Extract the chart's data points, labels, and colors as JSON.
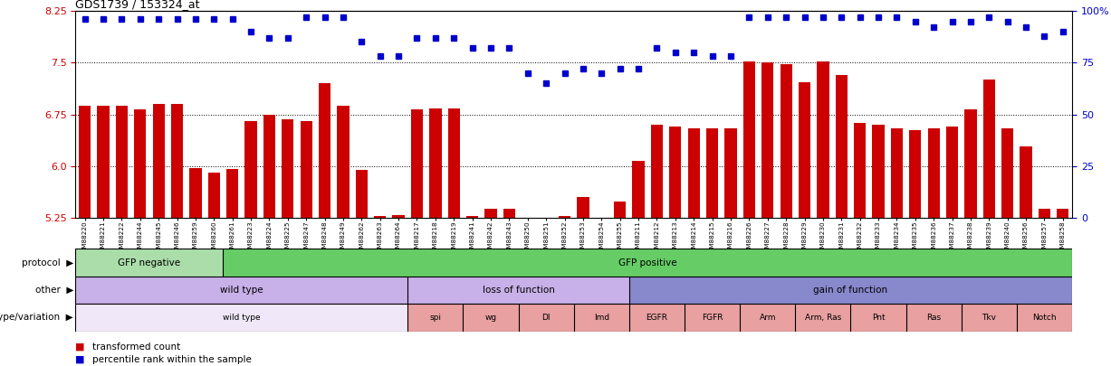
{
  "title": "GDS1739 / 153324_at",
  "sample_labels": [
    "GSM88220",
    "GSM88221",
    "GSM88222",
    "GSM88244",
    "GSM88245",
    "GSM88246",
    "GSM88259",
    "GSM88260",
    "GSM88261",
    "GSM88223",
    "GSM88224",
    "GSM88225",
    "GSM88247",
    "GSM88248",
    "GSM88249",
    "GSM88262",
    "GSM88263",
    "GSM88264",
    "GSM88217",
    "GSM88218",
    "GSM88219",
    "GSM88241",
    "GSM88242",
    "GSM88243",
    "GSM88250",
    "GSM88251",
    "GSM88252",
    "GSM88253",
    "GSM88254",
    "GSM88255",
    "GSM88211",
    "GSM88212",
    "GSM88213",
    "GSM88214",
    "GSM88215",
    "GSM88216",
    "GSM88226",
    "GSM88227",
    "GSM88228",
    "GSM88229",
    "GSM88230",
    "GSM88231",
    "GSM88232",
    "GSM88233",
    "GSM88234",
    "GSM88235",
    "GSM88236",
    "GSM88237",
    "GSM88238",
    "GSM88239",
    "GSM88240",
    "GSM88256",
    "GSM88257",
    "GSM88258"
  ],
  "bar_values": [
    6.87,
    6.87,
    6.87,
    6.82,
    6.9,
    6.9,
    5.97,
    5.91,
    5.96,
    6.65,
    6.75,
    6.68,
    6.65,
    7.2,
    6.88,
    5.95,
    5.27,
    5.29,
    6.82,
    6.83,
    6.83,
    5.28,
    5.38,
    5.38,
    5.17,
    5.1,
    5.27,
    5.55,
    5.18,
    5.48,
    6.07,
    6.6,
    6.57,
    6.55,
    6.55,
    6.55,
    7.52,
    7.5,
    7.48,
    7.22,
    7.52,
    7.32,
    6.62,
    6.6,
    6.55,
    6.52,
    6.55,
    6.57,
    6.82,
    7.25,
    6.55,
    6.28,
    5.38,
    5.38
  ],
  "dot_values": [
    96,
    96,
    96,
    96,
    96,
    96,
    96,
    96,
    96,
    90,
    87,
    87,
    97,
    97,
    97,
    85,
    78,
    78,
    87,
    87,
    87,
    82,
    82,
    82,
    70,
    65,
    70,
    72,
    70,
    72,
    72,
    82,
    80,
    80,
    78,
    78,
    97,
    97,
    97,
    97,
    97,
    97,
    97,
    97,
    97,
    95,
    92,
    95,
    95,
    97,
    95,
    92,
    88,
    90
  ],
  "ylim_left": [
    5.25,
    8.25
  ],
  "ylim_right": [
    0,
    100
  ],
  "yticks_left": [
    5.25,
    6.0,
    6.75,
    7.5,
    8.25
  ],
  "yticks_right": [
    0,
    25,
    50,
    75,
    100
  ],
  "bar_color": "#cc0000",
  "dot_color": "#0000cc",
  "hline_values": [
    6.0,
    6.75,
    7.5
  ],
  "protocol_split": 8,
  "protocol_neg_color": "#aaddaa",
  "protocol_pos_color": "#66cc66",
  "wt_color": "#c8b0e8",
  "loss_color": "#c8b0e8",
  "gain_color": "#8888cc",
  "geno_wt_color": "#f0e8f8",
  "geno_mut_color": "#e8a0a0",
  "other_groups": [
    {
      "label": "wild type",
      "start": 0,
      "end": 18
    },
    {
      "label": "loss of function",
      "start": 18,
      "end": 30
    },
    {
      "label": "gain of function",
      "start": 30,
      "end": 54
    }
  ],
  "genotype_groups": [
    {
      "label": "wild type",
      "start": 0,
      "end": 18,
      "is_wt": true
    },
    {
      "label": "spi",
      "start": 18,
      "end": 21,
      "is_wt": false
    },
    {
      "label": "wg",
      "start": 21,
      "end": 24,
      "is_wt": false
    },
    {
      "label": "Dl",
      "start": 24,
      "end": 27,
      "is_wt": false
    },
    {
      "label": "Imd",
      "start": 27,
      "end": 30,
      "is_wt": false
    },
    {
      "label": "EGFR",
      "start": 30,
      "end": 33,
      "is_wt": false
    },
    {
      "label": "FGFR",
      "start": 33,
      "end": 36,
      "is_wt": false
    },
    {
      "label": "Arm",
      "start": 36,
      "end": 39,
      "is_wt": false
    },
    {
      "label": "Arm, Ras",
      "start": 39,
      "end": 42,
      "is_wt": false
    },
    {
      "label": "Pnt",
      "start": 42,
      "end": 45,
      "is_wt": false
    },
    {
      "label": "Ras",
      "start": 45,
      "end": 48,
      "is_wt": false
    },
    {
      "label": "Tkv",
      "start": 48,
      "end": 51,
      "is_wt": false
    },
    {
      "label": "Notch",
      "start": 51,
      "end": 54,
      "is_wt": false
    }
  ]
}
